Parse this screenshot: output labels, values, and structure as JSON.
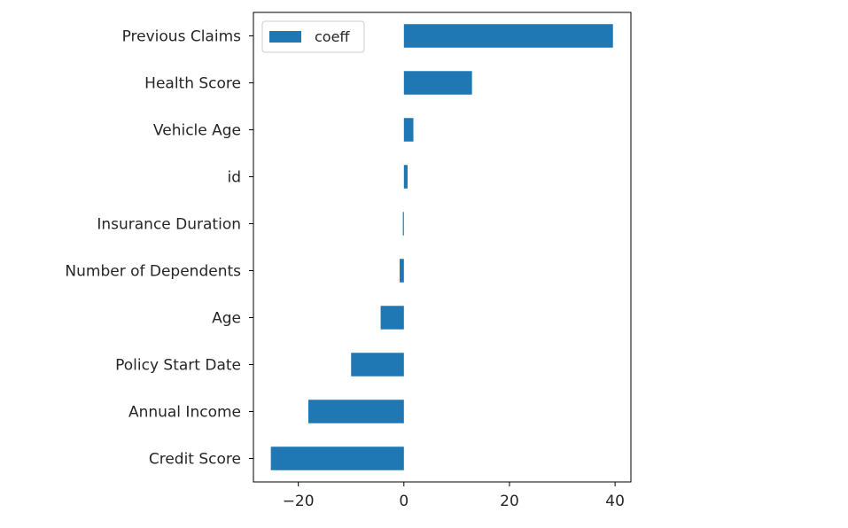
{
  "chart_data": {
    "type": "bar",
    "orientation": "horizontal",
    "title": "",
    "xlabel": "",
    "ylabel": "",
    "categories": [
      "Credit Score",
      "Annual Income",
      "Policy Start Date",
      "Age",
      "Number of Dependents",
      "Insurance Duration",
      "id",
      "Vehicle Age",
      "Health Score",
      "Previous Claims"
    ],
    "series": [
      {
        "name": "coeff",
        "color": "#1f77b4",
        "values": [
          -25.2,
          -18.1,
          -10.0,
          -4.4,
          -0.8,
          -0.2,
          0.7,
          1.8,
          12.9,
          39.6
        ]
      }
    ],
    "xlim": [
      -28.5,
      43.0
    ],
    "xticks": [
      -20,
      0,
      20,
      40
    ],
    "xtick_labels": [
      "−20",
      "0",
      "20",
      "40"
    ],
    "grid": false,
    "legend": {
      "position": "upper-left",
      "entries": [
        "coeff"
      ]
    }
  }
}
